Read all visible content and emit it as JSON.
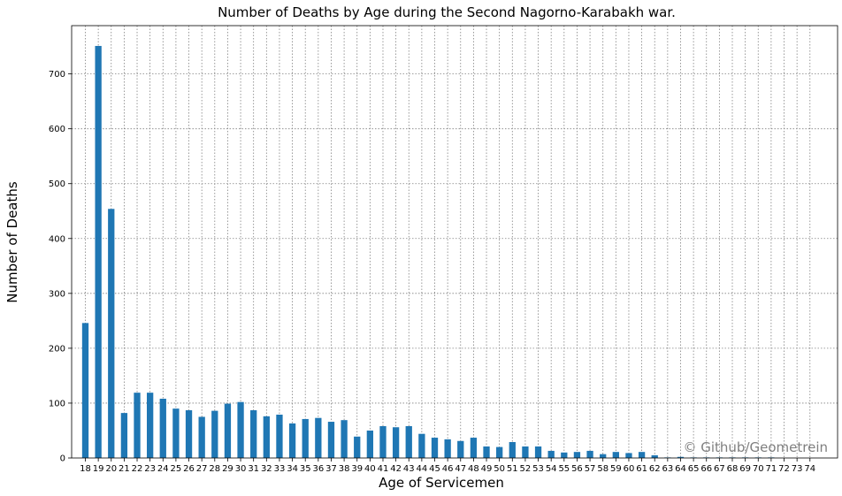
{
  "chart_data": {
    "type": "bar",
    "title": "Number of Deaths by Age during the Second Nagorno-Karabakh war.",
    "xlabel": "Age of Servicemen",
    "ylabel": "Number of Deaths",
    "categories": [
      "18",
      "19",
      "20",
      "21",
      "22",
      "23",
      "24",
      "25",
      "26",
      "27",
      "28",
      "29",
      "30",
      "31",
      "32",
      "33",
      "34",
      "35",
      "36",
      "37",
      "38",
      "39",
      "40",
      "41",
      "42",
      "43",
      "44",
      "45",
      "46",
      "47",
      "48",
      "49",
      "50",
      "51",
      "52",
      "53",
      "54",
      "55",
      "56",
      "57",
      "58",
      "59",
      "60",
      "61",
      "62",
      "63",
      "64",
      "65",
      "66",
      "67",
      "68",
      "69",
      "70",
      "71",
      "72",
      "73",
      "74"
    ],
    "values": [
      246,
      751,
      454,
      82,
      119,
      119,
      108,
      90,
      87,
      75,
      86,
      99,
      102,
      87,
      76,
      79,
      63,
      71,
      73,
      66,
      69,
      39,
      50,
      58,
      56,
      58,
      44,
      37,
      34,
      31,
      37,
      21,
      20,
      29,
      21,
      21,
      13,
      10,
      11,
      13,
      7,
      11,
      9,
      11,
      5,
      1,
      2,
      1,
      1,
      1,
      1,
      1,
      1,
      1,
      0,
      0,
      0
    ],
    "yticks": [
      0,
      100,
      200,
      300,
      400,
      500,
      600,
      700
    ],
    "ylim": [
      0,
      788
    ],
    "grid": true,
    "bar_color": "#1f77b4",
    "watermark": "© Github/Geometrein"
  }
}
